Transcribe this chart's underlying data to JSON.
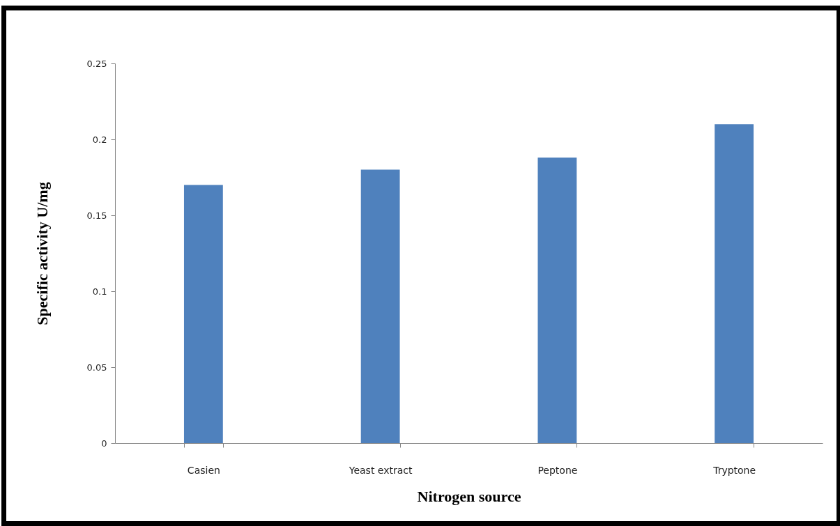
{
  "chart_data": {
    "type": "bar",
    "xlabel": "Nitrogen source",
    "ylabel": "Specific activity U/mg",
    "categories": [
      "Casien",
      "Yeast extract",
      "Peptone",
      "Tryptone"
    ],
    "values": [
      0.17,
      0.18,
      0.188,
      0.21
    ],
    "color": "#4f81bd",
    "ylim": [
      0,
      0.25
    ],
    "yticks": [
      0,
      0.05,
      0.1,
      0.15,
      0.2,
      0.25
    ],
    "grid": false
  }
}
